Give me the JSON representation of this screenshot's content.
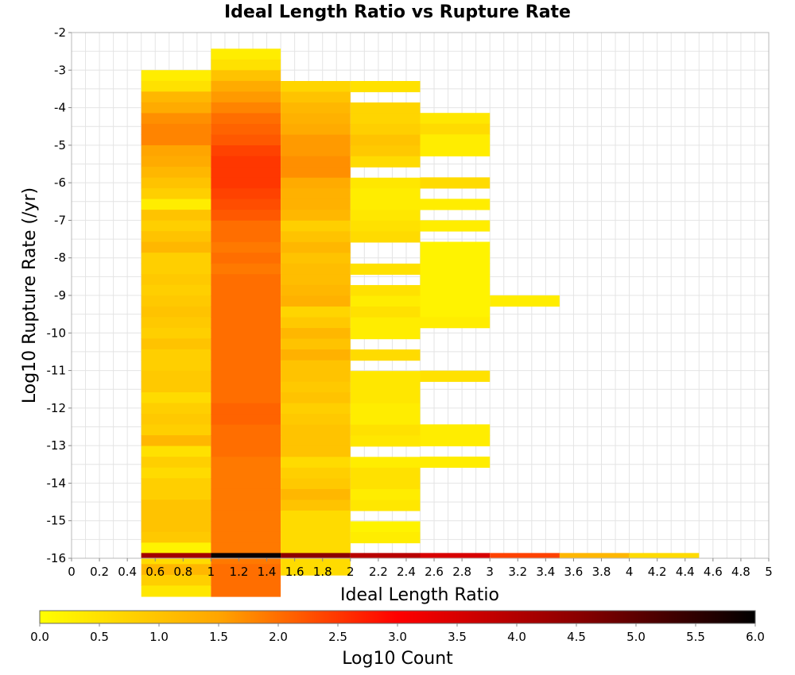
{
  "chart_data": {
    "type": "heatmap",
    "title": "Ideal Length Ratio vs Rupture Rate",
    "xlabel": "Ideal Length Ratio",
    "ylabel": "Log10 Rupture Rate (/yr)",
    "xlim": [
      0,
      5
    ],
    "ylim": [
      -16,
      -2
    ],
    "x_ticks": [
      "0",
      "0.2",
      "0.4",
      "0.6",
      "0.8",
      "1",
      "1.2",
      "1.4",
      "1.6",
      "1.8",
      "2",
      "2.2",
      "2.4",
      "2.6",
      "2.8",
      "3",
      "3.2",
      "3.4",
      "3.6",
      "3.8",
      "4",
      "4.2",
      "4.4",
      "4.6",
      "4.8",
      "5"
    ],
    "y_ticks": [
      "-2",
      "-3",
      "-4",
      "-5",
      "-6",
      "-7",
      "-8",
      "-9",
      "-10",
      "-11",
      "-12",
      "-13",
      "-14",
      "-15",
      "-16"
    ],
    "grid": true,
    "x_bin_width": 0.5,
    "y_bin_height": 0.286,
    "colorbar": {
      "label": "Log10 Count",
      "range": [
        0.0,
        6.0
      ],
      "ticks": [
        "0.0",
        "0.5",
        "1.0",
        "1.5",
        "2.0",
        "2.5",
        "3.0",
        "3.5",
        "4.0",
        "4.5",
        "5.0",
        "5.5",
        "6.0"
      ],
      "stops": [
        "#ffff00",
        "#ffa500",
        "#ff0000",
        "#8b0000",
        "#000000"
      ],
      "placement": "bottom"
    },
    "columns": [
      {
        "x_start": 0.5,
        "y_top": -3.0,
        "values": [
          0.3,
          0.5,
          1.2,
          1.4,
          1.7,
          1.8,
          1.8,
          1.5,
          1.4,
          1.2,
          1.0,
          0.8,
          0.3,
          1.0,
          0.8,
          1.0,
          1.2,
          0.8,
          0.8,
          0.9,
          0.8,
          0.9,
          1.0,
          0.9,
          0.8,
          1.0,
          0.8,
          0.8,
          0.9,
          0.9,
          0.6,
          0.8,
          0.9,
          0.8,
          1.2,
          0.5,
          0.8,
          0.6,
          0.8,
          0.8,
          1.0,
          1.0,
          1.0,
          0.9,
          0.2,
          0.6,
          1.2,
          0.8,
          0.4
        ]
      },
      {
        "x_start": 1.0,
        "y_top": -2.43,
        "values": [
          0.3,
          0.5,
          1.0,
          1.4,
          1.6,
          1.8,
          2.0,
          2.1,
          2.2,
          2.4,
          2.5,
          2.5,
          2.5,
          2.4,
          2.3,
          2.2,
          2.0,
          2.0,
          1.9,
          2.0,
          1.9,
          2.0,
          2.0,
          2.0,
          2.0,
          2.0,
          2.0,
          2.0,
          2.0,
          2.0,
          2.0,
          2.0,
          2.0,
          2.1,
          2.1,
          2.0,
          2.0,
          2.0,
          1.9,
          1.9,
          1.9,
          1.9,
          1.9,
          1.9,
          1.9,
          1.9,
          1.9,
          1.9,
          2.0,
          2.0,
          2.0
        ]
      },
      {
        "x_start": 1.5,
        "y_top": -3.29,
        "values": [
          0.7,
          1.0,
          1.2,
          1.3,
          1.4,
          1.6,
          1.6,
          1.7,
          1.7,
          1.4,
          1.3,
          1.3,
          1.2,
          0.8,
          1.0,
          1.2,
          1.0,
          1.1,
          1.1,
          1.2,
          1.3,
          0.7,
          0.9,
          1.2,
          1.0,
          1.3,
          1.0,
          1.0,
          0.9,
          1.0,
          0.8,
          0.9,
          1.0,
          1.0,
          1.0,
          0.6,
          0.8,
          0.9,
          1.2,
          1.0,
          0.6,
          0.6,
          0.6,
          0.6,
          0.6,
          0.6
        ]
      },
      {
        "x_start": 2.0,
        "y_top": -3.29,
        "values": [
          0.5,
          null,
          0.7,
          0.7,
          0.8,
          1.0,
          0.9,
          0.6,
          null,
          0.4,
          0.3,
          0.3,
          0.4,
          0.5,
          0.6,
          null,
          null,
          0.5,
          null,
          0.5,
          0.3,
          0.5,
          0.3,
          0.3,
          null,
          0.6,
          null,
          0.4,
          0.4,
          0.4,
          0.3,
          0.3,
          0.5,
          0.4,
          null,
          0.3,
          0.5,
          0.5,
          0.3,
          0.4,
          null,
          0.2,
          0.3
        ]
      },
      {
        "x_start": 2.5,
        "y_top": -4.14,
        "values": [
          0.4,
          0.6,
          0.3,
          0.3,
          null,
          null,
          0.6,
          null,
          0.3,
          null,
          0.3,
          null,
          0.2,
          0.2,
          0.2,
          0.2,
          0.2,
          0.2,
          0.2,
          0.3,
          null,
          null,
          null,
          null,
          0.5,
          null,
          null,
          null,
          null,
          0.3,
          0.3,
          null,
          0.3
        ]
      },
      {
        "x_start": 3.0,
        "y_top": -9.0,
        "values": [
          0.3
        ]
      }
    ],
    "bottom_row": {
      "y_top": -15.86,
      "values": [
        4.2,
        5.9,
        4.5,
        3.9,
        3.5,
        2.4,
        1.2,
        0.6
      ]
    }
  }
}
